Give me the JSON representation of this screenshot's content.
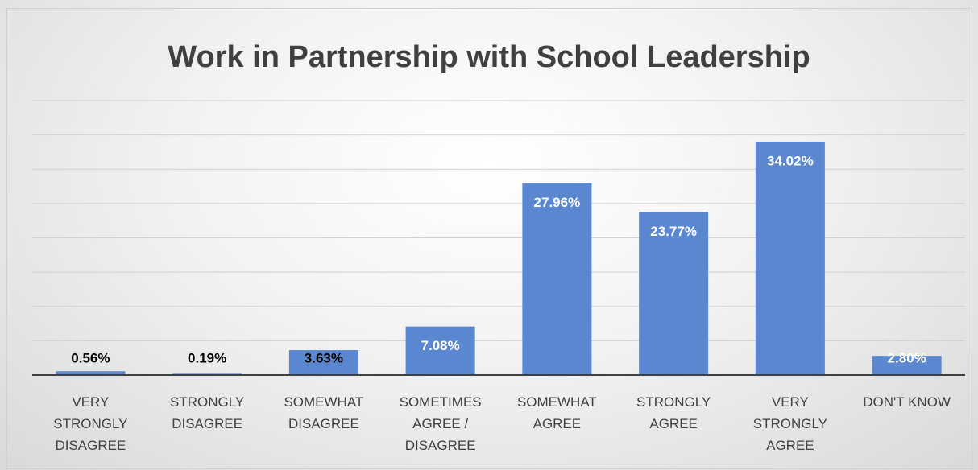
{
  "chart_data": {
    "type": "bar",
    "title": "Work in Partnership with School Leadership",
    "categories": [
      "VERY STRONGLY DISAGREE",
      "STRONGLY DISAGREE",
      "SOMEWHAT DISAGREE",
      "SOMETIMES AGREE / DISAGREE",
      "SOMEWHAT AGREE",
      "STRONGLY AGREE",
      "VERY STRONGLY AGREE",
      "DON'T KNOW"
    ],
    "values": [
      0.56,
      0.19,
      3.63,
      7.08,
      27.96,
      23.77,
      34.02,
      2.8
    ],
    "value_labels": [
      "0.56%",
      "0.19%",
      "3.63%",
      "7.08%",
      "27.96%",
      "23.77%",
      "34.02%",
      "2.80%"
    ],
    "value_label_colors": [
      "#000000",
      "#000000",
      "#000000",
      "#ffffff",
      "#ffffff",
      "#ffffff",
      "#ffffff",
      "#ffffff"
    ],
    "color": "#5b87d0",
    "ylim": [
      0,
      40
    ],
    "yticks": [
      0,
      5,
      10,
      15,
      20,
      25,
      30,
      35,
      40
    ],
    "grid": true
  }
}
